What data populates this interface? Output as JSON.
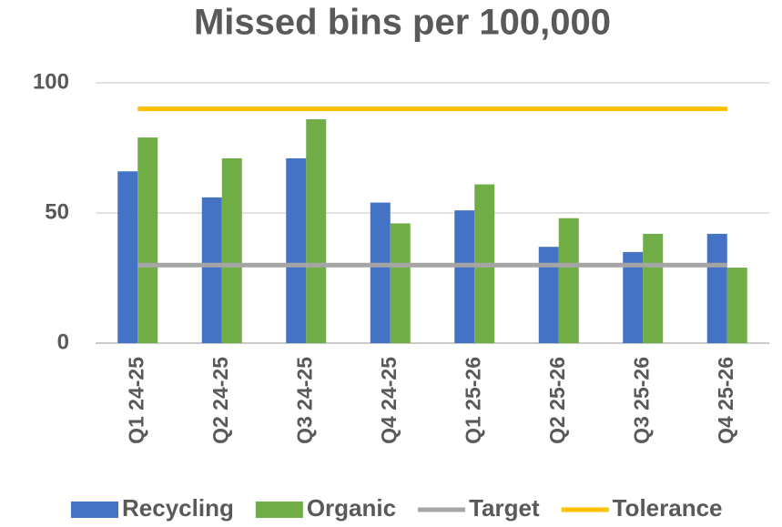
{
  "chart_data": {
    "type": "bar",
    "title": "Missed bins per 100,000",
    "categories": [
      "Q1 24-25",
      "Q2 24-25",
      "Q3 24-25",
      "Q4 24-25",
      "Q1 25-26",
      "Q2 25-26",
      "Q3 25-26",
      "Q4 25-26"
    ],
    "series": [
      {
        "name": "Recycling",
        "color": "#4472c4",
        "values": [
          66,
          56,
          71,
          54,
          51,
          37,
          35,
          42
        ]
      },
      {
        "name": "Organic",
        "color": "#70ad47",
        "values": [
          79,
          71,
          86,
          46,
          61,
          48,
          42,
          29
        ]
      },
      {
        "name": "Target",
        "type": "line",
        "color": "#a5a5a5",
        "values": [
          30,
          30,
          30,
          30,
          30,
          30,
          30,
          30
        ]
      },
      {
        "name": "Tolerance",
        "type": "line",
        "color": "#ffc000",
        "values": [
          90,
          90,
          90,
          90,
          90,
          90,
          90,
          90
        ]
      }
    ],
    "ylim": [
      0,
      100
    ],
    "yticks": [
      0,
      50,
      100
    ],
    "grid": true,
    "legend": "bottom"
  }
}
